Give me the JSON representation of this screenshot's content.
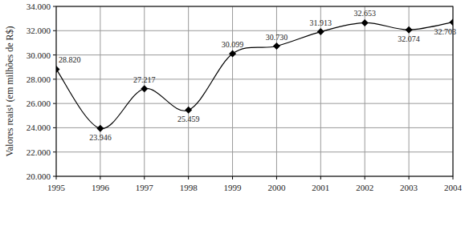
{
  "chart_data": {
    "type": "line",
    "y_label": "Valores reais¹ (em milhões de R$)",
    "categories": [
      "1995",
      "1996",
      "1997",
      "1998",
      "1999",
      "2000",
      "2001",
      "2002",
      "2003",
      "2004"
    ],
    "values": [
      28820,
      23946,
      27217,
      25459,
      30099,
      30730,
      31913,
      32653,
      32074,
      32703
    ],
    "value_labels": [
      "28.820",
      "23.946",
      "27.217",
      "25.459",
      "30.099",
      "30.730",
      "31.913",
      "32.653",
      "32.074",
      "32.703"
    ],
    "color": "#000000",
    "marker": "diamond",
    "line_style": "smooth",
    "data_labels": true,
    "grid": true,
    "ylim": [
      20000,
      34000
    ],
    "yticks": [
      {
        "value": 20000,
        "label": "20.000"
      },
      {
        "value": 22000,
        "label": "22.000"
      },
      {
        "value": 24000,
        "label": "24.000"
      },
      {
        "value": 26000,
        "label": "26.000"
      },
      {
        "value": 28000,
        "label": "28.000"
      },
      {
        "value": 30000,
        "label": "30.000"
      },
      {
        "value": 32000,
        "label": "32.000"
      },
      {
        "value": 34000,
        "label": "34.000"
      }
    ]
  }
}
